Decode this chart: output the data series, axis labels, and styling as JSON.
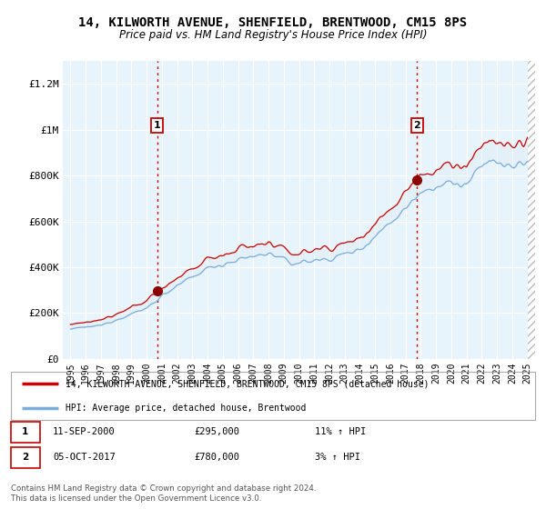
{
  "title": "14, KILWORTH AVENUE, SHENFIELD, BRENTWOOD, CM15 8PS",
  "subtitle": "Price paid vs. HM Land Registry's House Price Index (HPI)",
  "ylim": [
    0,
    1300000
  ],
  "yticks": [
    0,
    200000,
    400000,
    600000,
    800000,
    1000000,
    1200000
  ],
  "ytick_labels": [
    "£0",
    "£200K",
    "£400K",
    "£600K",
    "£800K",
    "£1M",
    "£1.2M"
  ],
  "sale1_x": 2000.7,
  "sale1_y": 295000,
  "sale2_x": 2017.75,
  "sale2_y": 780000,
  "line1_color": "#cc0000",
  "line2_color": "#7aaddc",
  "fill_color": "#daeaf5",
  "background_color": "#e8f4fb",
  "legend1_label": "14, KILWORTH AVENUE, SHENFIELD, BRENTWOOD, CM15 8PS (detached house)",
  "legend2_label": "HPI: Average price, detached house, Brentwood",
  "footer": "Contains HM Land Registry data © Crown copyright and database right 2024.\nThis data is licensed under the Open Government Licence v3.0.",
  "xtick_years": [
    1995,
    1996,
    1997,
    1998,
    1999,
    2000,
    2001,
    2002,
    2003,
    2004,
    2005,
    2006,
    2007,
    2008,
    2009,
    2010,
    2011,
    2012,
    2013,
    2014,
    2015,
    2016,
    2017,
    2018,
    2019,
    2020,
    2021,
    2022,
    2023,
    2024,
    2025
  ]
}
